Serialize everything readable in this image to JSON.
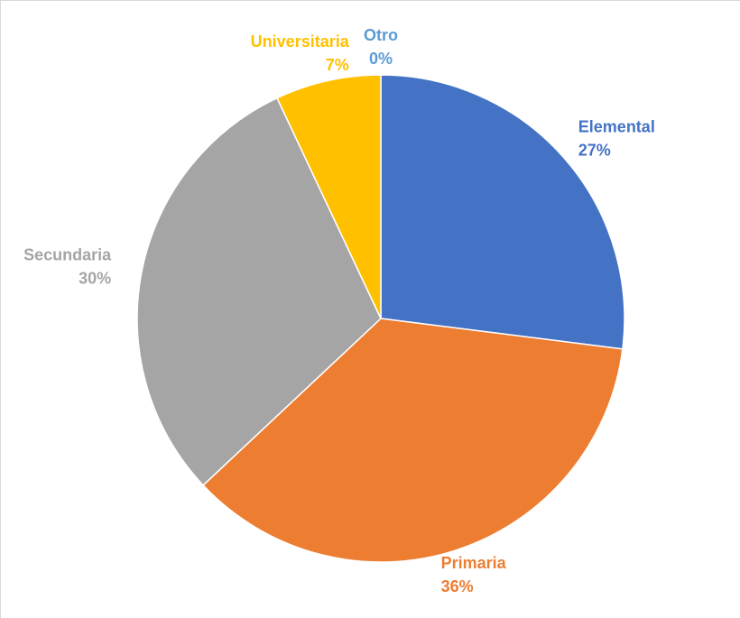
{
  "chart_data": {
    "type": "pie",
    "categories": [
      "Elemental",
      "Primaria",
      "Secundaria",
      "Universitaria",
      "Otro"
    ],
    "values": [
      27,
      36,
      30,
      7,
      0
    ],
    "value_labels": [
      "27%",
      "36%",
      "30%",
      "7%",
      "0%"
    ],
    "colors": [
      "#4472c4",
      "#ed7d31",
      "#a5a5a5",
      "#ffc000",
      "#5b9bd5"
    ]
  }
}
